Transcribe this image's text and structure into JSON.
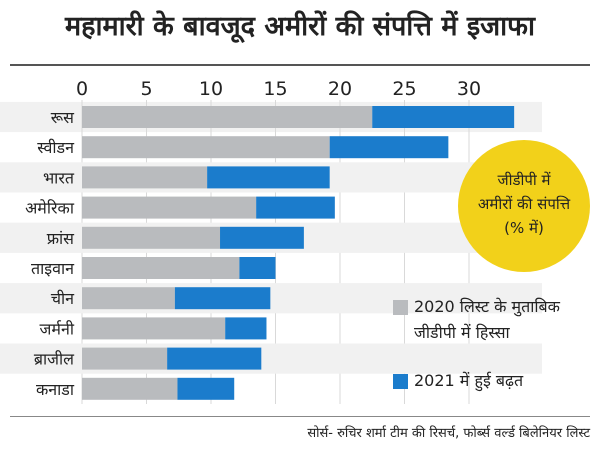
{
  "title": "महामारी के बावजूद अमीरों की संपत्ति में इजाफा",
  "source": "सोर्स- रुचिर शर्मा टीम की रिसर्च, फोर्ब्स वर्ल्ड बिलेनियर लिस्ट",
  "note": {
    "lines": [
      "जीडीपी में",
      "अमीरों की संपत्ति",
      "(% में)"
    ]
  },
  "colors": {
    "share_2020": "#b9bbbe",
    "increase_2021": "#1b7ccc",
    "note_circle": "#f2d11a",
    "text": "#222222"
  },
  "legend": {
    "share_2020": "2020 लिस्ट के मुताबिक जीडीपी में हिस्सा",
    "increase_2021": "2021 में हुई बढ़त"
  },
  "chart_data": {
    "type": "bar",
    "orientation": "horizontal",
    "stacked": true,
    "title": "महामारी के बावजूद अमीरों की संपत्ति में इजाफा",
    "categories": [
      "रूस",
      "स्वीडन",
      "भारत",
      "अमेरिका",
      "फ्रांस",
      "ताइवान",
      "चीन",
      "जर्मनी",
      "ब्राजील",
      "कनाडा"
    ],
    "series": [
      {
        "name": "2020 लिस्ट के मुताबिक जीडीपी में हिस्सा",
        "values": [
          22.5,
          19.2,
          9.7,
          13.5,
          10.7,
          12.2,
          7.2,
          11.1,
          6.6,
          7.4
        ]
      },
      {
        "name": "2021 में हुई बढ़त",
        "values": [
          11.0,
          9.2,
          9.5,
          6.1,
          6.5,
          2.8,
          7.4,
          3.2,
          7.3,
          4.4
        ]
      }
    ],
    "xaxis": {
      "ticks": [
        0,
        5,
        10,
        15,
        20,
        25,
        30
      ],
      "position": "top",
      "range": [
        0,
        35
      ]
    },
    "grid": true,
    "legend_position": "bottom-right"
  }
}
